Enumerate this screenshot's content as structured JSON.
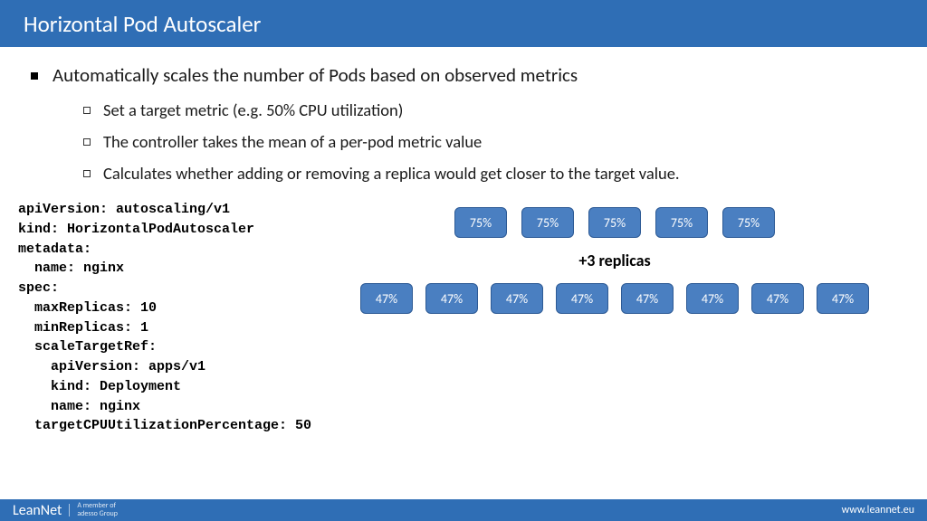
{
  "title": "Horizontal Pod Autoscaler",
  "mainBullet": "Automatically scales the number of Pods based on observed metrics",
  "subBullets": [
    "Set a target metric (e.g. 50% CPU utilization)",
    "The controller takes the mean of a per-pod metric value",
    "Calculates whether adding or removing a replica would get closer to the target value."
  ],
  "code": "apiVersion: autoscaling/v1\nkind: HorizontalPodAutoscaler\nmetadata:\n  name: nginx\nspec:\n  maxReplicas: 10\n  minReplicas: 1\n  scaleTargetRef:\n    apiVersion: apps/v1\n    kind: Deployment\n    name: nginx\n  targetCPUUtilizationPercentage: 50",
  "replicaLabel": "+3 replicas",
  "row1": [
    "75%",
    "75%",
    "75%",
    "75%",
    "75%"
  ],
  "row2": [
    "47%",
    "47%",
    "47%",
    "47%",
    "47%",
    "47%",
    "47%",
    "47%"
  ],
  "footer": {
    "brand": "LeanNet",
    "subLine1": "A member of",
    "subLine2": "adesso Group",
    "url": "www.leannet.eu"
  },
  "colors": {
    "header": "#2f6eb5",
    "pod": "#4a7fc1",
    "podBorder": "#2d5a95"
  }
}
